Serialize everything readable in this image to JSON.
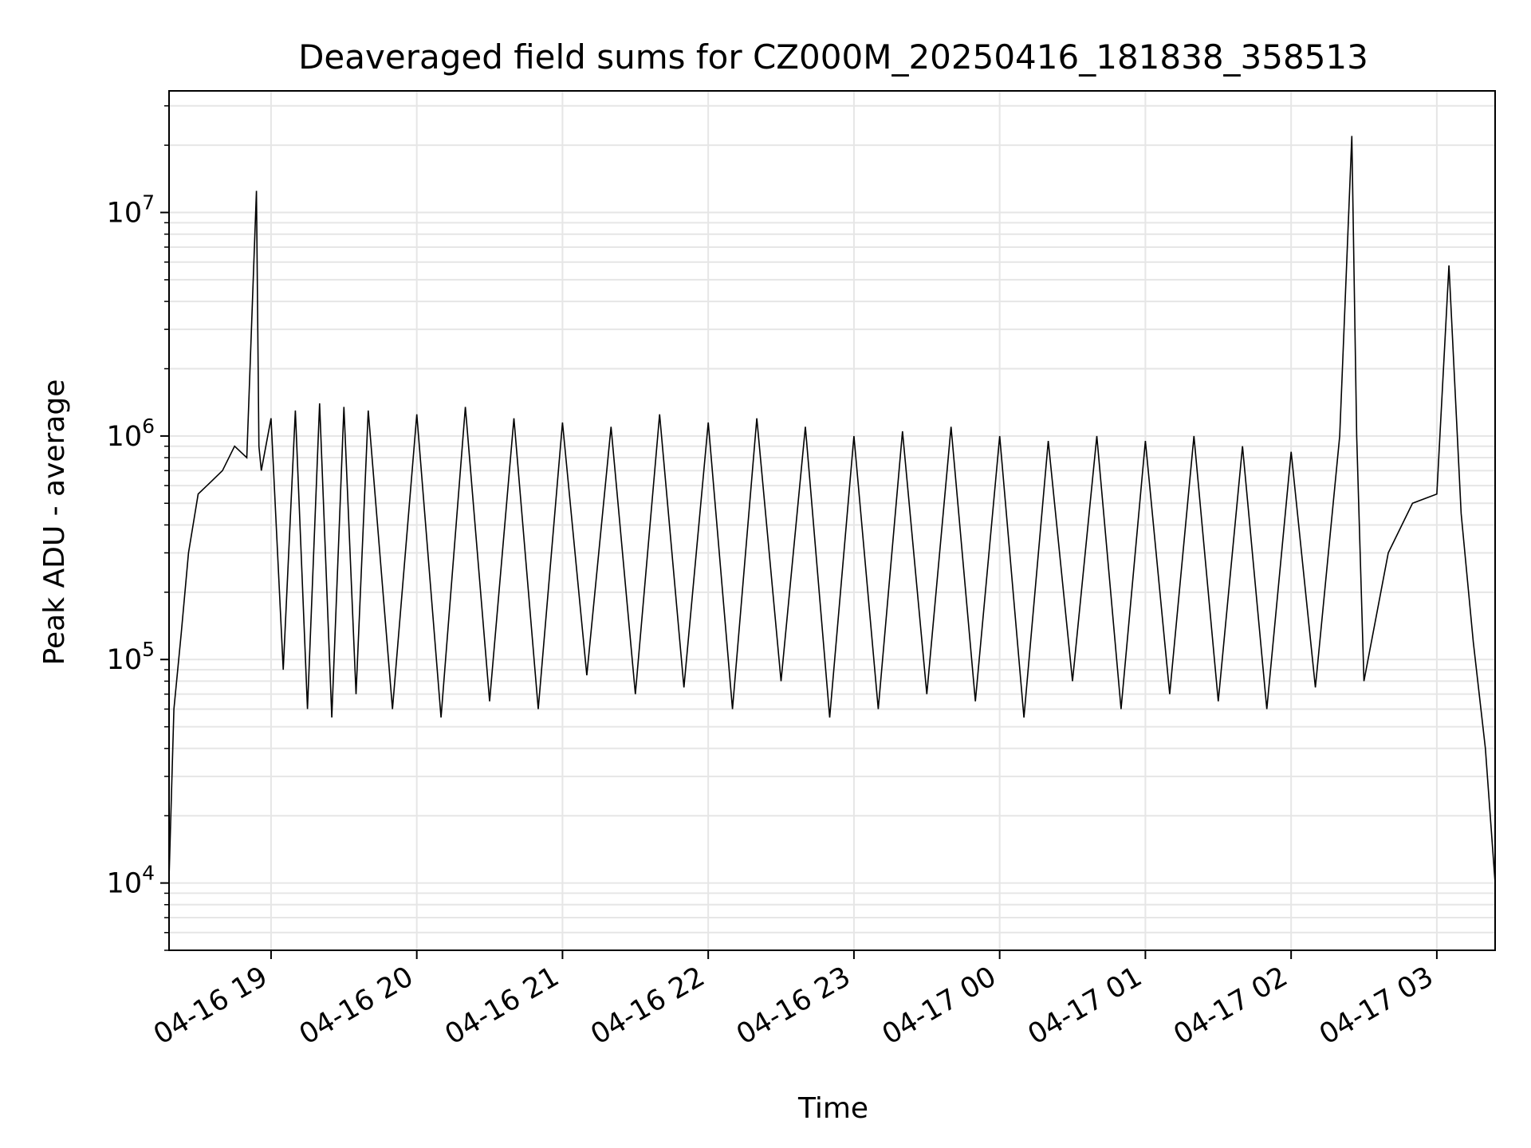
{
  "chart_data": {
    "type": "line",
    "title": "Deaveraged field sums for CZ000M_20250416_181838_358513",
    "xlabel": "Time",
    "ylabel": "Peak ADU - average",
    "y_scale": "log",
    "ylim": [
      5000,
      35000000
    ],
    "xlim": [
      "2025-04-16 18:18",
      "2025-04-17 03:24"
    ],
    "grid": true,
    "line_color": "#000000",
    "grid_color": "#e6e6e6",
    "x_ticks": [
      {
        "label": "04-16 19",
        "value": "2025-04-16 19:00"
      },
      {
        "label": "04-16 20",
        "value": "2025-04-16 20:00"
      },
      {
        "label": "04-16 21",
        "value": "2025-04-16 21:00"
      },
      {
        "label": "04-16 22",
        "value": "2025-04-16 22:00"
      },
      {
        "label": "04-16 23",
        "value": "2025-04-16 23:00"
      },
      {
        "label": "04-17 00",
        "value": "2025-04-17 00:00"
      },
      {
        "label": "04-17 01",
        "value": "2025-04-17 01:00"
      },
      {
        "label": "04-17 02",
        "value": "2025-04-17 02:00"
      },
      {
        "label": "04-17 03",
        "value": "2025-04-17 03:00"
      }
    ],
    "y_ticks": [
      {
        "base": "10",
        "exp": "4",
        "value": 10000
      },
      {
        "base": "10",
        "exp": "5",
        "value": 100000
      },
      {
        "base": "10",
        "exp": "6",
        "value": 1000000
      },
      {
        "base": "10",
        "exp": "7",
        "value": 10000000
      }
    ],
    "series": [
      {
        "x": [
          "2025-04-16 18:18",
          "2025-04-16 18:20",
          "2025-04-16 18:23",
          "2025-04-16 18:26",
          "2025-04-16 18:30",
          "2025-04-16 18:35",
          "2025-04-16 18:40",
          "2025-04-16 18:45",
          "2025-04-16 18:50",
          "2025-04-16 18:54",
          "2025-04-16 18:55",
          "2025-04-16 18:56",
          "2025-04-16 19:00",
          "2025-04-16 19:05",
          "2025-04-16 19:10",
          "2025-04-16 19:15",
          "2025-04-16 19:20",
          "2025-04-16 19:25",
          "2025-04-16 19:30",
          "2025-04-16 19:35",
          "2025-04-16 19:40",
          "2025-04-16 19:50",
          "2025-04-16 20:00",
          "2025-04-16 20:10",
          "2025-04-16 20:20",
          "2025-04-16 20:30",
          "2025-04-16 20:40",
          "2025-04-16 20:50",
          "2025-04-16 21:00",
          "2025-04-16 21:10",
          "2025-04-16 21:20",
          "2025-04-16 21:30",
          "2025-04-16 21:40",
          "2025-04-16 21:50",
          "2025-04-16 22:00",
          "2025-04-16 22:10",
          "2025-04-16 22:20",
          "2025-04-16 22:30",
          "2025-04-16 22:40",
          "2025-04-16 22:50",
          "2025-04-16 23:00",
          "2025-04-16 23:10",
          "2025-04-16 23:20",
          "2025-04-16 23:30",
          "2025-04-16 23:40",
          "2025-04-16 23:50",
          "2025-04-17 00:00",
          "2025-04-17 00:10",
          "2025-04-17 00:20",
          "2025-04-17 00:30",
          "2025-04-17 00:40",
          "2025-04-17 00:50",
          "2025-04-17 01:00",
          "2025-04-17 01:10",
          "2025-04-17 01:20",
          "2025-04-17 01:30",
          "2025-04-17 01:40",
          "2025-04-17 01:50",
          "2025-04-17 02:00",
          "2025-04-17 02:10",
          "2025-04-17 02:20",
          "2025-04-17 02:25",
          "2025-04-17 02:27",
          "2025-04-17 02:30",
          "2025-04-17 02:40",
          "2025-04-17 02:50",
          "2025-04-17 03:00",
          "2025-04-17 03:05",
          "2025-04-17 03:10",
          "2025-04-17 03:15",
          "2025-04-17 03:20",
          "2025-04-17 03:24"
        ],
        "y": [
          10500,
          60000,
          130000,
          300000,
          550000,
          620000,
          700000,
          900000,
          800000,
          12500000,
          900000,
          700000,
          1200000,
          90000,
          1300000,
          60000,
          1400000,
          55000,
          1350000,
          70000,
          1300000,
          60000,
          1250000,
          55000,
          1350000,
          65000,
          1200000,
          60000,
          1150000,
          85000,
          1100000,
          70000,
          1250000,
          75000,
          1150000,
          60000,
          1200000,
          80000,
          1100000,
          55000,
          1000000,
          60000,
          1050000,
          70000,
          1100000,
          65000,
          1000000,
          55000,
          950000,
          80000,
          1000000,
          60000,
          950000,
          70000,
          1000000,
          65000,
          900000,
          60000,
          850000,
          75000,
          1000000,
          22000000,
          1000000,
          80000,
          300000,
          500000,
          550000,
          5800000,
          450000,
          120000,
          40000,
          10000
        ]
      }
    ]
  }
}
